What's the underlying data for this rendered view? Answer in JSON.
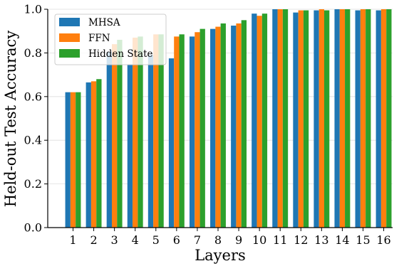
{
  "chart_data": {
    "type": "bar",
    "title": "",
    "xlabel": "Layers",
    "ylabel": "Held-out Test Accuracy",
    "categories": [
      "1",
      "2",
      "3",
      "4",
      "5",
      "6",
      "7",
      "8",
      "9",
      "10",
      "11",
      "12",
      "13",
      "14",
      "15",
      "16"
    ],
    "ylim": [
      0,
      1.0
    ],
    "yticks": [
      "0.0",
      "0.2",
      "0.4",
      "0.6",
      "0.8",
      "1.0"
    ],
    "grid": "horizontal",
    "legend_position": "top-left",
    "series": [
      {
        "name": "MHSA",
        "color": "#1f77b4",
        "values": [
          0.62,
          0.665,
          0.805,
          0.745,
          0.79,
          0.775,
          0.875,
          0.91,
          0.925,
          0.98,
          1.0,
          0.985,
          0.995,
          1.0,
          0.995,
          0.995
        ]
      },
      {
        "name": "FFN",
        "color": "#ff7f0e",
        "values": [
          0.62,
          0.67,
          0.84,
          0.87,
          0.885,
          0.875,
          0.895,
          0.92,
          0.935,
          0.97,
          1.0,
          0.995,
          1.0,
          1.0,
          1.0,
          1.0
        ]
      },
      {
        "name": "Hidden State",
        "color": "#2ca02c",
        "values": [
          0.62,
          0.68,
          0.86,
          0.875,
          0.885,
          0.885,
          0.91,
          0.935,
          0.95,
          0.98,
          1.0,
          0.995,
          0.995,
          1.0,
          1.0,
          1.0
        ]
      }
    ]
  }
}
